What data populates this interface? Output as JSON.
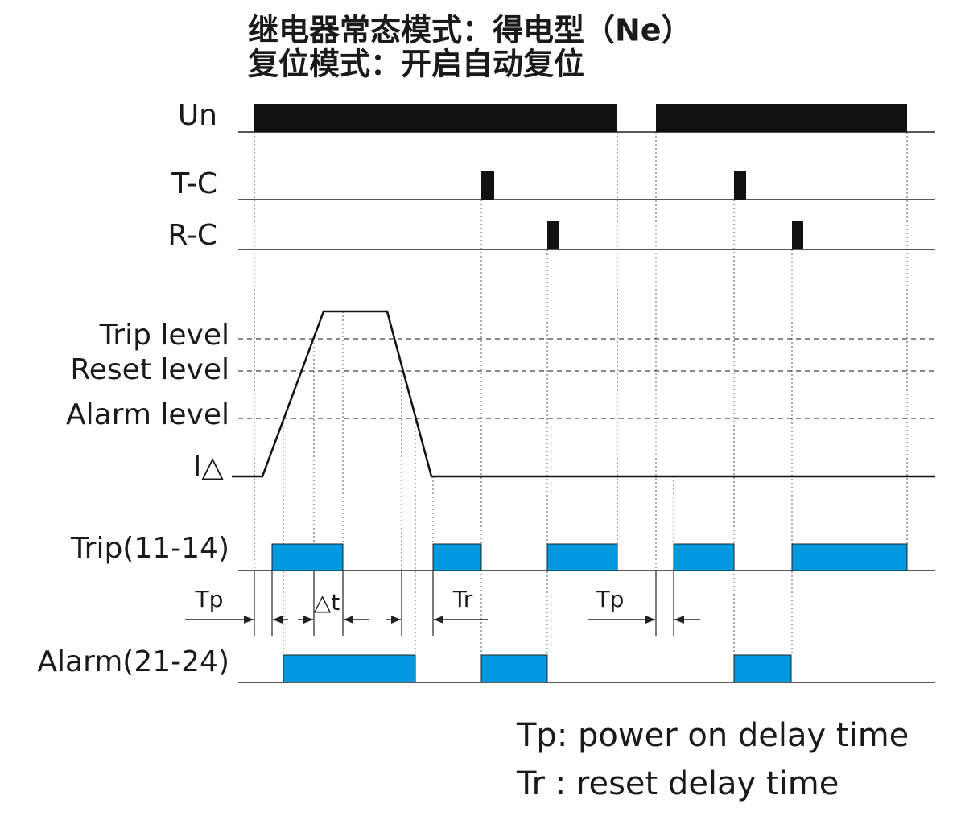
{
  "title": [
    "继电器常态模式：得电型（Ne）",
    "复位模式：开启自动复位"
  ],
  "signals": {
    "un": "Un",
    "tc": "T-C",
    "rc": "R-C",
    "trip_level": "Trip level",
    "reset_level": "Reset level",
    "alarm_level": "Alarm level",
    "current": "I△",
    "trip": "Trip(11-14)",
    "alarm": "Alarm(21-24)"
  },
  "annotations": [
    "Tp",
    "△t",
    "Tr",
    "Tp"
  ],
  "notes": [
    "Tp: power on delay time",
    "Tr : reset delay time"
  ]
}
